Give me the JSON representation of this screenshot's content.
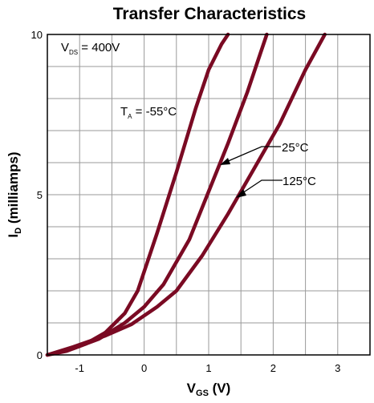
{
  "chart_data": {
    "type": "line",
    "title": "Transfer Characteristics",
    "xlabel": {
      "main": "V",
      "sub": "GS",
      "unit": " (V)"
    },
    "ylabel": {
      "main": "I",
      "sub": "D",
      "unit": " (milliamps)"
    },
    "xlim": [
      -1.5,
      3.5
    ],
    "ylim": [
      0,
      10
    ],
    "grid": true,
    "x_ticks": [
      -1,
      0,
      1,
      2,
      3
    ],
    "y_ticks": [
      0,
      5,
      10
    ],
    "line_color": "#7a0a23",
    "condition": {
      "main": "V",
      "sub": "DS",
      "value": " = 400V"
    },
    "series": [
      {
        "name": "-55°C",
        "label_prefix": {
          "main": "T",
          "sub": "A"
        },
        "label_value": " = -55°C",
        "x": [
          -1.5,
          -1.2,
          -0.9,
          -0.6,
          -0.3,
          -0.1,
          0.2,
          0.5,
          0.8,
          1.0,
          1.2,
          1.3
        ],
        "y": [
          0,
          0.12,
          0.35,
          0.7,
          1.3,
          2.0,
          3.8,
          5.7,
          7.7,
          8.9,
          9.7,
          10.0
        ]
      },
      {
        "name": "25°C",
        "label_value": "25°C",
        "x": [
          -1.5,
          -1.1,
          -0.7,
          -0.3,
          0.0,
          0.3,
          0.7,
          1.0,
          1.3,
          1.6,
          1.8,
          1.9
        ],
        "y": [
          0,
          0.2,
          0.5,
          1.0,
          1.5,
          2.2,
          3.6,
          5.1,
          6.6,
          8.2,
          9.4,
          10.0
        ]
      },
      {
        "name": "125°C",
        "label_value": "125°C",
        "x": [
          -1.5,
          -1.1,
          -0.6,
          -0.2,
          0.2,
          0.5,
          0.9,
          1.3,
          1.7,
          2.1,
          2.5,
          2.8
        ],
        "y": [
          0,
          0.25,
          0.6,
          0.95,
          1.5,
          2.0,
          3.1,
          4.4,
          5.8,
          7.2,
          8.9,
          10.0
        ]
      }
    ]
  }
}
